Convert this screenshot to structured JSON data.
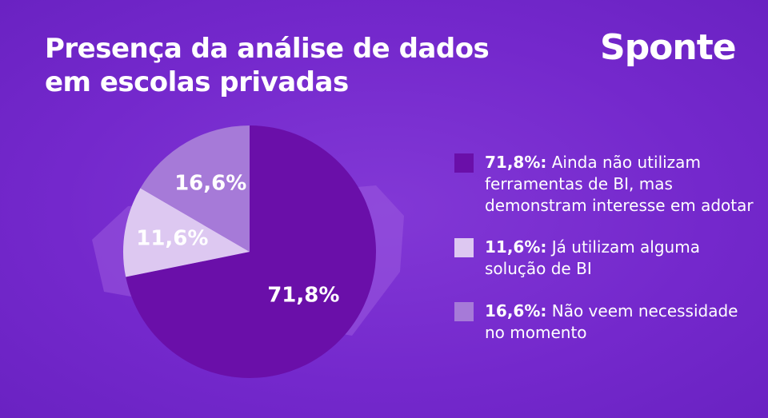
{
  "chart_data": {
    "type": "pie",
    "title": "Presença da análise de dados em escolas privadas",
    "logo": "Sponte",
    "categories": [
      "Ainda não utilizam ferramentas de BI, mas demonstram interesse em adotar",
      "Já utilizam alguma solução de BI",
      "Não veem necessidade no momento"
    ],
    "legend_keys": [
      "71,8%:",
      "11,6%:",
      "16,6%:"
    ],
    "values": [
      71.8,
      11.6,
      16.6
    ],
    "value_labels": [
      "71,8%",
      "11,6%",
      "16,6%"
    ],
    "colors": [
      "#6a0fa9",
      "#ddc8f1",
      "#a67ad8"
    ]
  }
}
